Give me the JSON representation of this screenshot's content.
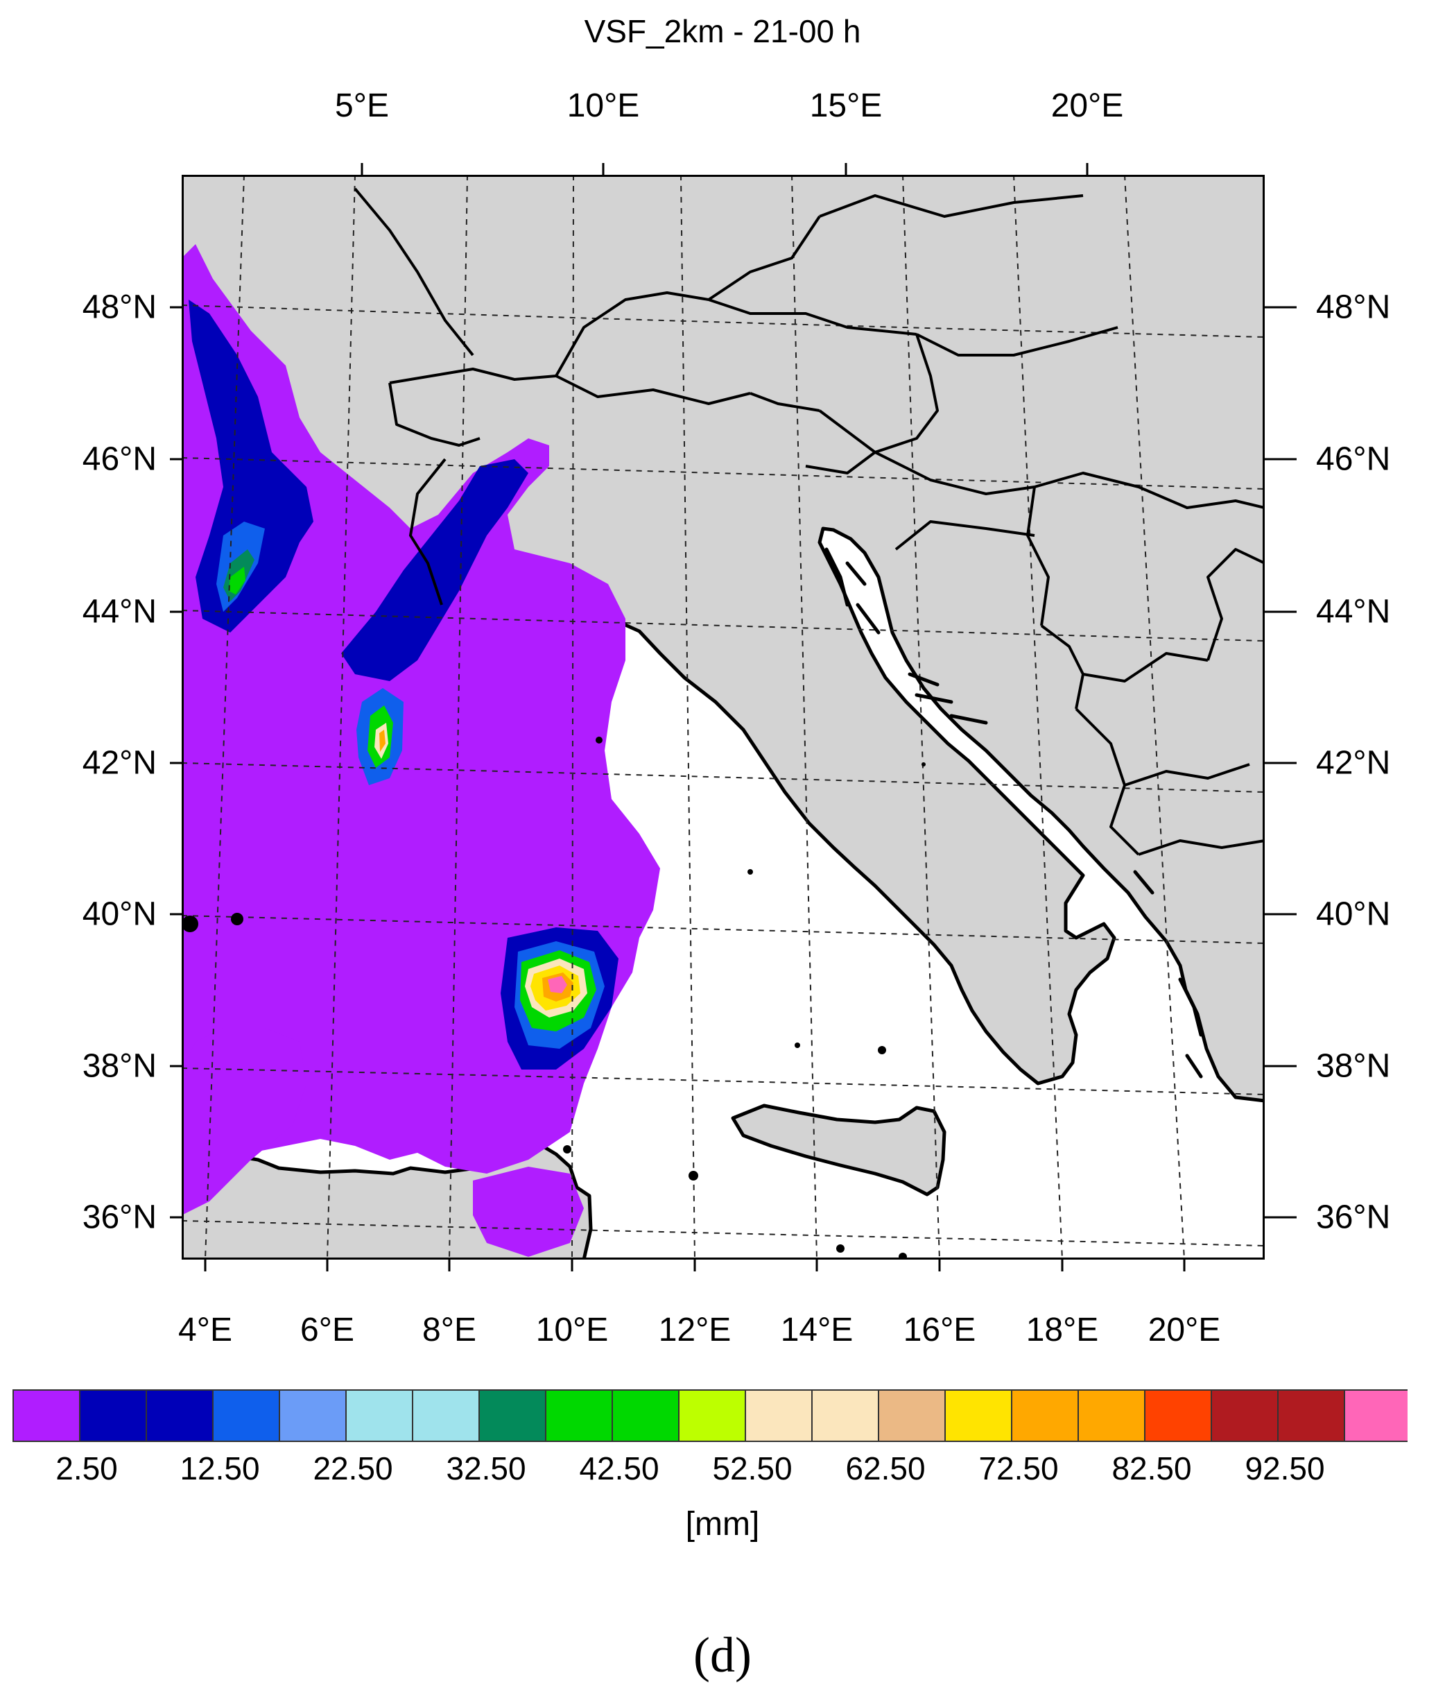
{
  "title": "VSF_2km - 21-00 h",
  "top_lon_labels": [
    "5°E",
    "10°E",
    "15°E",
    "20°E"
  ],
  "bottom_lon_labels": [
    "4°E",
    "6°E",
    "8°E",
    "10°E",
    "12°E",
    "14°E",
    "16°E",
    "18°E",
    "20°E"
  ],
  "lat_labels": [
    "48°N",
    "46°N",
    "44°N",
    "42°N",
    "40°N",
    "38°N",
    "36°N"
  ],
  "colorbar": {
    "colors": [
      "#b01dff",
      "#0000b8",
      "#0000b8",
      "#0f5fec",
      "#6b9cf7",
      "#9fe3ec",
      "#9fe3ec",
      "#038a5a",
      "#00d800",
      "#00d800",
      "#bdff00",
      "#fbe6bd",
      "#fbe6bd",
      "#ebb985",
      "#ffe400",
      "#ffa800",
      "#ffa800",
      "#ff4200",
      "#b01b20",
      "#b01b20",
      "#ff66b8"
    ],
    "tick_labels": [
      "2.50",
      "12.50",
      "22.50",
      "32.50",
      "42.50",
      "52.50",
      "62.50",
      "72.50",
      "82.50",
      "92.50"
    ],
    "units": "[mm]"
  },
  "panel_label": "(d)",
  "colors": {
    "land": "#d3d3d3",
    "sea": "#ffffff",
    "border": "#000000"
  }
}
